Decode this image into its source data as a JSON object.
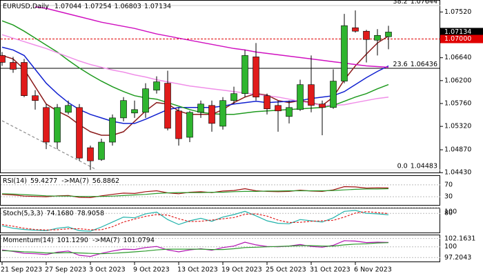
{
  "chart_data": [
    {
      "type": "candlestick",
      "title": "EURUSD,Daily",
      "categories": [
        "21 Sep 2023",
        null,
        null,
        null,
        "27 Sep 2023",
        null,
        null,
        null,
        "3 Oct 2023",
        null,
        null,
        null,
        "9 Oct 2023",
        null,
        null,
        null,
        "13 Oct 2023",
        null,
        null,
        null,
        "19 Oct 2023",
        null,
        null,
        null,
        "25 Oct 2023",
        null,
        null,
        null,
        "31 Oct 2023",
        null,
        null,
        null,
        "6 Nov 2023",
        null,
        null,
        null
      ],
      "open": [
        1.06683,
        1.0655,
        1.0655,
        1.0591,
        1.05683,
        1.05017,
        1.0559,
        1.05683,
        1.0491,
        1.04683,
        1.05017,
        1.05483,
        1.05577,
        1.0559,
        1.06017,
        1.0615,
        1.05617,
        1.0511,
        1.0559,
        1.05723,
        1.05323,
        1.05817,
        1.0595,
        1.06657,
        1.0591,
        1.05723,
        1.0551,
        1.05643,
        1.06123,
        1.0575,
        1.05683,
        1.0619,
        1.07217,
        1.0715,
        1.06977,
        1.07044
      ],
      "high": [
        1.0675,
        1.06657,
        1.06617,
        1.06017,
        1.0575,
        1.0575,
        1.05817,
        1.0575,
        1.0495,
        1.05083,
        1.0555,
        1.05883,
        1.05817,
        1.0615,
        1.06283,
        1.0639,
        1.05683,
        1.05617,
        1.05817,
        1.05817,
        1.05883,
        1.06083,
        1.0679,
        1.06923,
        1.0595,
        1.05817,
        1.05817,
        1.06217,
        1.06683,
        1.05817,
        1.06417,
        1.07483,
        1.0755,
        1.07177,
        1.0719,
        1.07254
      ],
      "low": [
        1.06483,
        1.0635,
        1.05883,
        1.05643,
        1.04883,
        1.04883,
        1.0555,
        1.04657,
        1.04483,
        1.04657,
        1.0495,
        1.05417,
        1.05483,
        1.05483,
        1.0595,
        1.05243,
        1.0495,
        1.05017,
        1.05483,
        1.05217,
        1.05257,
        1.0575,
        1.05883,
        1.05817,
        1.0555,
        1.05217,
        1.05377,
        1.05617,
        1.0559,
        1.0515,
        1.05657,
        1.0615,
        1.07123,
        1.0655,
        1.06683,
        1.06803
      ],
      "close": [
        1.0655,
        1.06417,
        1.0591,
        1.05817,
        1.05017,
        1.05683,
        1.05723,
        1.0471,
        1.04657,
        1.05017,
        1.05483,
        1.05817,
        1.05643,
        1.06043,
        1.06177,
        1.05283,
        1.05083,
        1.0559,
        1.0575,
        1.05377,
        1.05817,
        1.0595,
        1.06683,
        1.05883,
        1.05657,
        1.05617,
        1.05683,
        1.06123,
        1.05723,
        1.05683,
        1.0619,
        1.07257,
        1.0715,
        1.0699,
        1.0707,
        1.07134
      ],
      "up_color": "#2fb52f",
      "down_color": "#e01b1b",
      "ylim": [
        1.0442,
        1.0775
      ],
      "yticks": [
        {
          "value": 1.0752,
          "label": "1.07520"
        },
        {
          "value": 1.0664,
          "label": "1.06640"
        },
        {
          "value": 1.062,
          "label": "1.06200"
        },
        {
          "value": 1.0576,
          "label": "1.05760"
        },
        {
          "value": 1.0532,
          "label": "1.05320"
        },
        {
          "value": 1.0487,
          "label": "1.04870"
        },
        {
          "value": 1.0443,
          "label": "1.04430"
        }
      ],
      "price_line": {
        "value": 1.07,
        "label": "1.07000",
        "color": "#e00000"
      },
      "fib_levels": [
        {
          "label": "38.2",
          "value": 1.07644,
          "color": "#c8c8c8"
        },
        {
          "label": "23.6",
          "value": 1.06436,
          "color": "#000000"
        },
        {
          "label": "0.0",
          "value": 1.04483,
          "color": "#e6e6e6"
        }
      ],
      "series": [
        {
          "color": "#8b1a1a",
          "values": [
            1.06683,
            1.06617,
            1.06417,
            1.06083,
            1.0575,
            1.05617,
            1.0551,
            1.0535,
            1.05217,
            1.0515,
            1.0515,
            1.05217,
            1.05417,
            1.05617,
            1.05777,
            1.0575,
            1.05617,
            1.0555,
            1.0555,
            1.0555,
            1.05643,
            1.05777,
            1.05883,
            1.0595,
            1.05923,
            1.05817,
            1.05777,
            1.05817,
            1.05777,
            1.05723,
            1.05883,
            1.06217,
            1.06483,
            1.0671,
            1.06923,
            1.07057
          ]
        },
        {
          "color": "#1020d0",
          "values": [
            1.06843,
            1.0679,
            1.06683,
            1.06417,
            1.0615,
            1.0595,
            1.05777,
            1.05643,
            1.0555,
            1.05483,
            1.05417,
            1.05377,
            1.05377,
            1.05457,
            1.0555,
            1.05643,
            1.05683,
            1.05683,
            1.05683,
            1.05683,
            1.0571,
            1.0575,
            1.05777,
            1.05803,
            1.05777,
            1.0579,
            1.05803,
            1.05817,
            1.05857,
            1.05883,
            1.0591,
            1.0599,
            1.06123,
            1.06257,
            1.06377,
            1.06483
          ]
        },
        {
          "color": "#1e9a1e",
          "values": [
            1.0735,
            1.0727,
            1.0715,
            1.07017,
            1.06883,
            1.0675,
            1.0659,
            1.06443,
            1.0631,
            1.0619,
            1.06083,
            1.0599,
            1.0591,
            1.0587,
            1.05843,
            1.05777,
            1.0571,
            1.05643,
            1.0559,
            1.05563,
            1.0555,
            1.0555,
            1.05577,
            1.05603,
            1.05617,
            1.0563,
            1.05643,
            1.05657,
            1.0567,
            1.05683,
            1.05723,
            1.05803,
            1.05883,
            1.0595,
            1.06043,
            1.06123
          ]
        },
        {
          "color": "#d010c0",
          "values": [
            null,
            null,
            null,
            1.07617,
            1.0759,
            1.07537,
            1.07483,
            1.0743,
            1.07377,
            1.07323,
            1.07283,
            1.07243,
            1.07203,
            1.0715,
            1.07097,
            1.07057,
            1.07017,
            1.06977,
            1.06937,
            1.06897,
            1.06857,
            1.06817,
            1.0679,
            1.0675,
            1.06723,
            1.06697,
            1.0667,
            1.06643,
            1.06617,
            1.0659,
            1.06563,
            1.06537,
            1.0651,
            1.06483,
            1.0647,
            1.06457
          ]
        },
        {
          "color": "#f08ee8",
          "values": [
            1.07083,
            1.07017,
            1.0695,
            1.06883,
            1.06817,
            1.06737,
            1.06657,
            1.06577,
            1.0651,
            1.06457,
            1.06403,
            1.06363,
            1.0631,
            1.0627,
            1.06217,
            1.06177,
            1.06137,
            1.06097,
            1.0607,
            1.06043,
            1.06017,
            1.0599,
            1.05963,
            1.05937,
            1.0591,
            1.05883,
            1.05843,
            1.05803,
            1.05763,
            1.05723,
            1.05723,
            1.05737,
            1.05777,
            1.05817,
            1.05857,
            1.05883
          ]
        }
      ]
    },
    {
      "type": "line",
      "ylim": [
        0,
        100
      ],
      "yticks": [
        70,
        30
      ],
      "series": [
        {
          "name": "RSI(14)",
          "color": "#a01010",
          "values": [
            38,
            36,
            32,
            31,
            30,
            33,
            34,
            28,
            27,
            33,
            38,
            42,
            41,
            47,
            50,
            43,
            40,
            45,
            47,
            44,
            49,
            51,
            57,
            50,
            48,
            47,
            48,
            52,
            49,
            48,
            53,
            64,
            63,
            59,
            60,
            59.4277
          ]
        },
        {
          "name": "->MA(7)",
          "color": "#2a9a2a",
          "values": [
            40,
            39,
            37,
            35,
            33,
            32,
            32,
            31,
            31,
            31,
            32,
            34,
            36,
            38,
            41,
            43,
            44,
            44,
            44,
            45,
            45,
            47,
            48,
            48,
            49,
            49,
            50,
            50,
            50,
            50,
            51,
            53,
            55,
            56,
            56,
            56.8862
          ]
        }
      ]
    },
    {
      "type": "line",
      "ylim": [
        0,
        100
      ],
      "yticks": [
        100,
        80
      ],
      "series": [
        {
          "name": "Stoch(5,3,3)",
          "color": "#20b2aa",
          "values": [
            30,
            20,
            15,
            12,
            10,
            20,
            25,
            10,
            8,
            25,
            45,
            65,
            62,
            78,
            85,
            55,
            35,
            50,
            60,
            48,
            65,
            75,
            88,
            70,
            50,
            40,
            38,
            55,
            50,
            45,
            62,
            88,
            92,
            80,
            78,
            74.168
          ],
          "value_labels": [
            null,
            null,
            null,
            null,
            null,
            null,
            null,
            null,
            null,
            null,
            null,
            null,
            null,
            null,
            null,
            null,
            null,
            null,
            null,
            null,
            null,
            null,
            null,
            null,
            null,
            null,
            null,
            null,
            null,
            null,
            null,
            null,
            null,
            null,
            null,
            "74.1680"
          ]
        },
        {
          "color": "#e02020",
          "dashed": true,
          "values": [
            35,
            28,
            20,
            15,
            13,
            14,
            18,
            18,
            14,
            14,
            26,
            45,
            57,
            68,
            75,
            73,
            58,
            47,
            48,
            53,
            58,
            63,
            76,
            78,
            69,
            53,
            43,
            44,
            48,
            50,
            52,
            65,
            81,
            87,
            83,
            78.9058
          ]
        }
      ]
    },
    {
      "type": "line",
      "ylim": [
        96,
        103
      ],
      "yticks": [
        102.1631,
        100,
        97.2043
      ],
      "series": [
        {
          "name": "Momentum(14)",
          "color": "#b010b0",
          "values": [
            99.2,
            98.8,
            98.3,
            98.2,
            98.0,
            98.6,
            98.9,
            97.8,
            97.5,
            98.3,
            98.9,
            99.4,
            99.3,
            99.8,
            100.1,
            99.2,
            98.7,
            99.2,
            99.5,
            99.1,
            99.8,
            100.2,
            101.2,
            100.5,
            100.1,
            100.0,
            100.2,
            100.6,
            100.1,
            99.9,
            100.4,
            101.6,
            101.5,
            101.1,
            101.2,
            101.129
          ],
          "value_labels": [
            null,
            null,
            null,
            null,
            null,
            null,
            null,
            null,
            null,
            null,
            null,
            null,
            null,
            null,
            null,
            null,
            null,
            null,
            null,
            null,
            null,
            null,
            null,
            null,
            null,
            null,
            null,
            null,
            null,
            null,
            null,
            null,
            null,
            null,
            null,
            "101.1290"
          ]
        },
        {
          "name": "->MA(7)",
          "color": "#2a9a2a",
          "values": [
            99.0,
            98.9,
            98.7,
            98.6,
            98.4,
            98.4,
            98.5,
            98.4,
            98.3,
            98.2,
            98.3,
            98.5,
            98.7,
            98.9,
            99.2,
            99.4,
            99.4,
            99.4,
            99.4,
            99.3,
            99.3,
            99.5,
            99.8,
            99.9,
            100.0,
            100.1,
            100.2,
            100.3,
            100.3,
            100.2,
            100.2,
            100.5,
            100.7,
            100.8,
            101.0,
            101.0794
          ]
        }
      ]
    }
  ]
}
